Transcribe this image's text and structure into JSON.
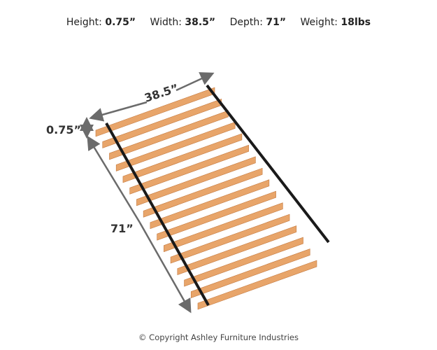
{
  "specs": [
    {
      "label": "Height:",
      "value": "0.75”"
    },
    {
      "label": "Width:",
      "value": "38.5”"
    },
    {
      "label": "Depth:",
      "value": "71”"
    },
    {
      "label": "Weight:",
      "value": "18lbs"
    }
  ],
  "dimensions": {
    "width": "38.5”",
    "height": "0.75”",
    "depth": "71”"
  },
  "colors": {
    "slat": "#e8a56a",
    "slat_edge": "#c47a40",
    "strap": "#1a1a1a",
    "arrow": "#6b6b6b"
  },
  "copyright": "© Copyright Ashley Furniture Industries"
}
